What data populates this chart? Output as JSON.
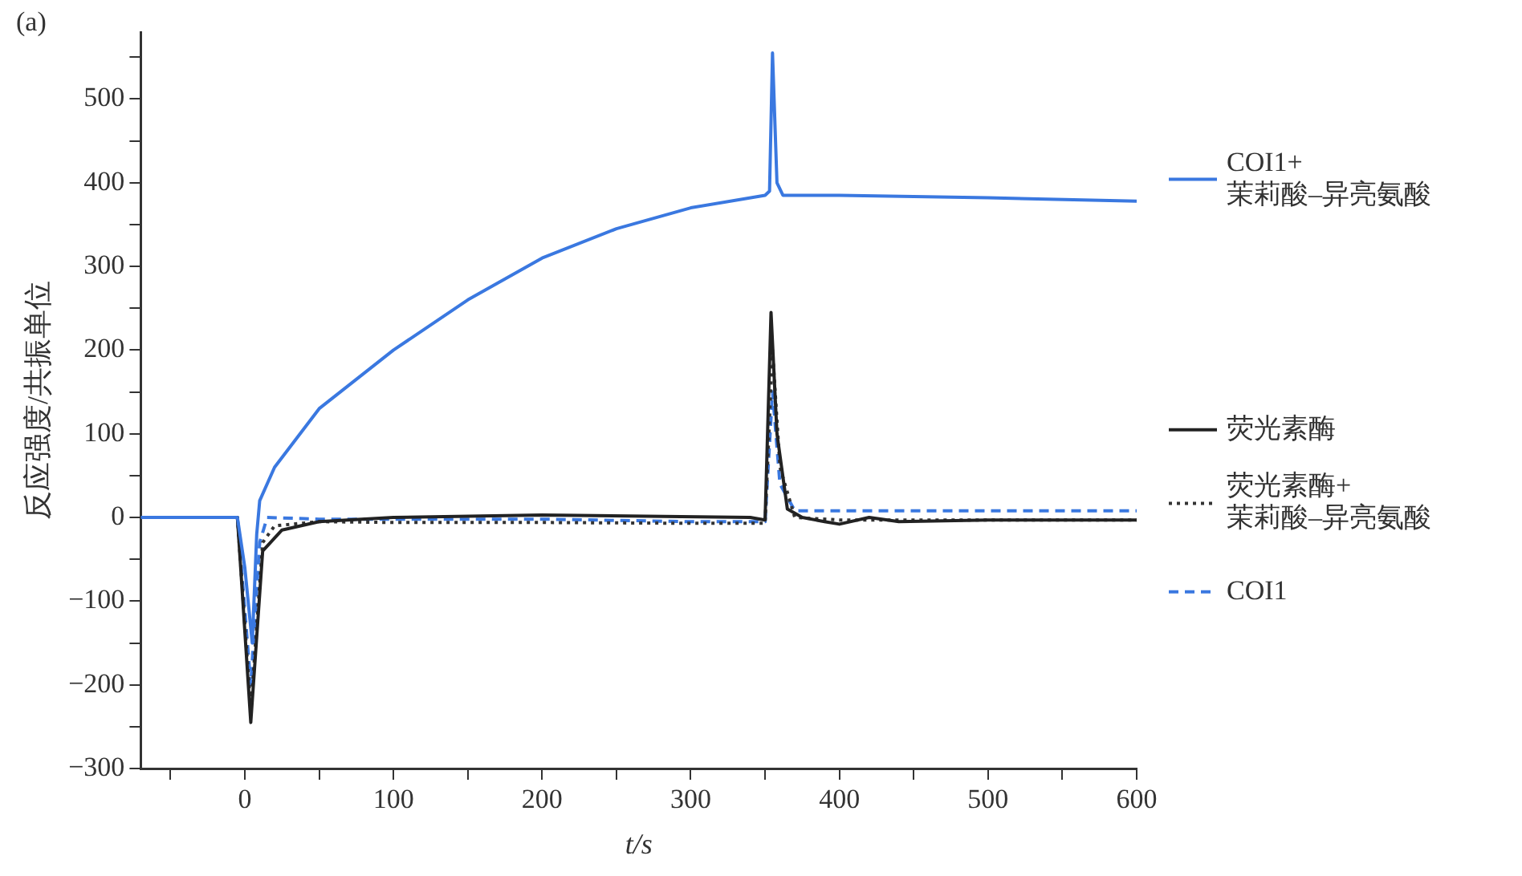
{
  "chart_data": {
    "type": "line",
    "xlabel": "t/s",
    "ylabel": "反应强度/共振单位",
    "annotations": [
      "(a)"
    ],
    "xlim": [
      -70,
      600
    ],
    "ylim": [
      -300,
      580
    ],
    "xticks": [
      {
        "value": -50,
        "label": null
      },
      0,
      {
        "value": 50,
        "label": null
      },
      100,
      {
        "value": 150,
        "label": null
      },
      200,
      {
        "value": 250,
        "label": null
      },
      300,
      {
        "value": 350,
        "label": null
      },
      400,
      {
        "value": 450,
        "label": null
      },
      500,
      {
        "value": 550,
        "label": null
      },
      600
    ],
    "yticks": [
      -300,
      {
        "value": -250,
        "label": null
      },
      -200,
      {
        "value": -150,
        "label": null
      },
      -100,
      {
        "value": -50,
        "label": null
      },
      0,
      {
        "value": 50,
        "label": null
      },
      100,
      {
        "value": 150,
        "label": null
      },
      200,
      {
        "value": 250,
        "label": null
      },
      300,
      {
        "value": 350,
        "label": null
      },
      400,
      {
        "value": 450,
        "label": null
      },
      500,
      {
        "value": 550,
        "label": null
      }
    ],
    "grid": false,
    "legend": "right",
    "marker": "none",
    "series": [
      {
        "name": "COI1+茉莉酸–异亮氨酸",
        "color": "#3a78e0",
        "line_style": "solid",
        "x": [
          -70,
          -5,
          0,
          5,
          8,
          10,
          20,
          50,
          100,
          150,
          200,
          250,
          300,
          350,
          353,
          355,
          358,
          362,
          400,
          500,
          600
        ],
        "values": [
          0,
          0,
          -60,
          -150,
          -20,
          20,
          60,
          130,
          200,
          260,
          310,
          345,
          370,
          385,
          390,
          555,
          400,
          385,
          385,
          382,
          378
        ]
      },
      {
        "name": "荧光素酶",
        "color": "#222222",
        "line_style": "solid",
        "x": [
          -70,
          -5,
          4,
          12,
          25,
          50,
          100,
          200,
          340,
          350,
          354,
          358,
          365,
          375,
          390,
          400,
          420,
          440,
          500,
          600
        ],
        "values": [
          0,
          0,
          -245,
          -40,
          -15,
          -5,
          0,
          3,
          0,
          -3,
          245,
          100,
          10,
          0,
          -5,
          -8,
          0,
          -5,
          -3,
          -3
        ]
      },
      {
        "name": "荧光素酶+茉莉酸–异亮氨酸",
        "color": "#333333",
        "line_style": "dotted",
        "x": [
          -70,
          -5,
          4,
          12,
          20,
          50,
          100,
          200,
          300,
          350,
          355,
          360,
          370,
          400,
          500,
          600
        ],
        "values": [
          0,
          0,
          -230,
          -30,
          -10,
          -5,
          -6,
          -6,
          -7,
          -7,
          200,
          60,
          0,
          -3,
          -3,
          -3
        ]
      },
      {
        "name": "COI1",
        "color": "#3a78e0",
        "line_style": "dashed",
        "x": [
          -70,
          -5,
          4,
          10,
          15,
          50,
          100,
          200,
          300,
          350,
          355,
          360,
          370,
          400,
          500,
          600
        ],
        "values": [
          0,
          0,
          -200,
          -30,
          0,
          -2,
          -2,
          -2,
          -5,
          -5,
          150,
          40,
          8,
          8,
          8,
          8
        ]
      }
    ]
  }
}
